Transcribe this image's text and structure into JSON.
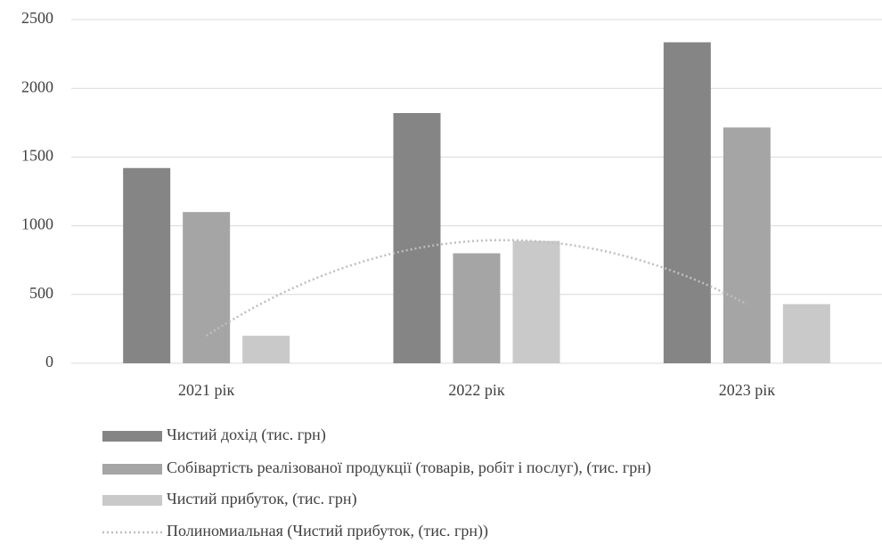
{
  "chart_data": {
    "type": "bar",
    "categories": [
      "2021 рік",
      "2022 рік",
      "2023 рік"
    ],
    "series": [
      {
        "name": "Чистий дохід (тис. грн)",
        "color": "#858585",
        "values": [
          1420,
          1820,
          2335
        ]
      },
      {
        "name": "Собівартість реалізованої продукції (товарів, робіт і послуг), (тис. грн)",
        "color": "#a5a5a5",
        "values": [
          1100,
          800,
          1715
        ]
      },
      {
        "name": "Чистий прибуток, (тис. грн)",
        "color": "#c9c9c9",
        "values": [
          200,
          890,
          430
        ]
      }
    ],
    "trendline": {
      "name": "Полиномиальная (Чистий прибуток, (тис. грн))",
      "series": 2,
      "order": 2,
      "color": "#bfbfbf"
    },
    "ylim": [
      0,
      2500
    ],
    "yticks": [
      0,
      500,
      1000,
      1500,
      2000,
      2500
    ],
    "grid": true,
    "legend": "bottom"
  }
}
